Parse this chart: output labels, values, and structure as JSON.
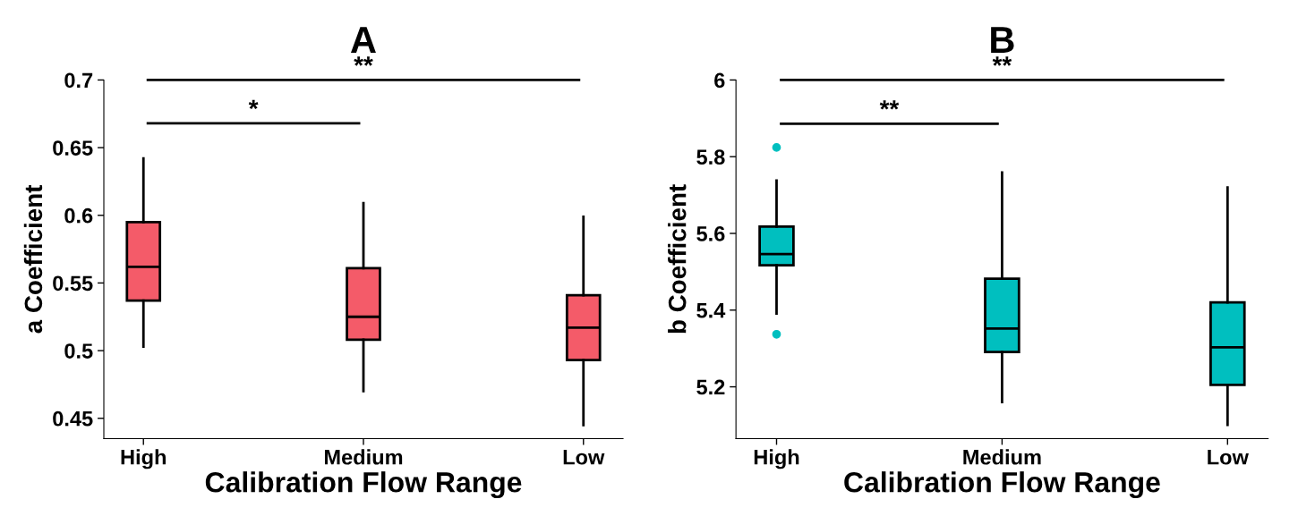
{
  "chart_data": [
    {
      "type": "box",
      "title": "A",
      "xlabel": "Calibration Flow Range",
      "ylabel": "a Coefficient",
      "categories": [
        "High",
        "Medium",
        "Low"
      ],
      "color": "#f45b69",
      "boxes": [
        {
          "low": 0.503,
          "q1": 0.537,
          "median": 0.562,
          "q3": 0.595,
          "high": 0.642
        },
        {
          "low": 0.47,
          "q1": 0.508,
          "median": 0.525,
          "q3": 0.561,
          "high": 0.609
        },
        {
          "low": 0.445,
          "q1": 0.493,
          "median": 0.517,
          "q3": 0.541,
          "high": 0.599
        }
      ],
      "ylim": [
        0.435,
        0.7
      ],
      "yticks": [
        0.45,
        0.5,
        0.55,
        0.6,
        0.65,
        0.7
      ],
      "annotations": [
        "*",
        "**"
      ]
    },
    {
      "type": "box",
      "title": "B",
      "xlabel": "Calibration Flow Range",
      "ylabel": "b Coefficient",
      "categories": [
        "High",
        "Medium",
        "Low"
      ],
      "color": "#00bfbf",
      "boxes": [
        {
          "low": 5.391,
          "q1": 5.517,
          "median": 5.546,
          "q3": 5.618,
          "high": 5.738,
          "outliers": [
            5.824,
            5.337
          ]
        },
        {
          "low": 5.16,
          "q1": 5.291,
          "median": 5.352,
          "q3": 5.482,
          "high": 5.759
        },
        {
          "low": 5.101,
          "q1": 5.205,
          "median": 5.303,
          "q3": 5.42,
          "high": 5.72
        }
      ],
      "ylim": [
        5.065,
        6
      ],
      "yticks": [
        5.2,
        5.4,
        5.6,
        5.8,
        6
      ],
      "annotations": [
        "**",
        "**"
      ]
    }
  ]
}
